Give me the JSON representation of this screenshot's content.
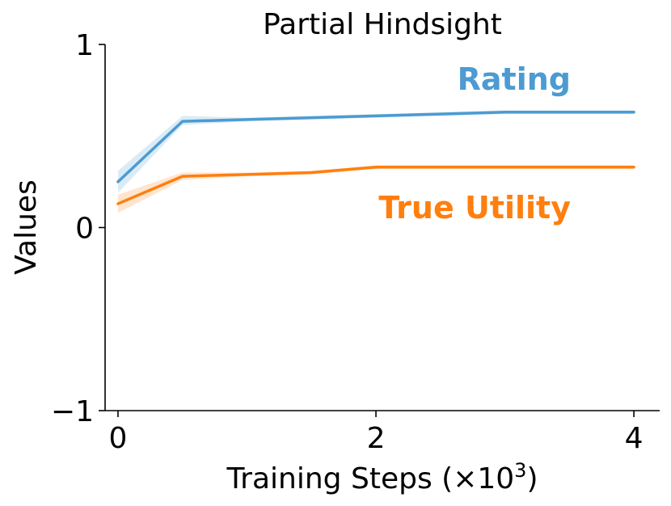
{
  "chart_data": {
    "type": "line",
    "title": "Partial Hindsight",
    "xlabel": "Training Steps (×10",
    "xlabel_superscript": "3",
    "xlabel_suffix": ")",
    "ylabel": "Values",
    "xlim": [
      -0.1,
      4.2
    ],
    "ylim": [
      -1,
      1
    ],
    "xticks": [
      0,
      2,
      4
    ],
    "xtick_labels": [
      "0",
      "2",
      "4"
    ],
    "yticks": [
      -1,
      0,
      1
    ],
    "ytick_labels": [
      "−1",
      "0",
      "1"
    ],
    "grid": false,
    "x": [
      0,
      0.5,
      1.0,
      1.5,
      2.0,
      2.5,
      3.0,
      3.5,
      4.0
    ],
    "series": [
      {
        "name": "Rating",
        "color": "#4c9bd2",
        "values": [
          0.25,
          0.58,
          0.59,
          0.6,
          0.61,
          0.62,
          0.63,
          0.63,
          0.63
        ],
        "lower": [
          0.19,
          0.56,
          0.58,
          0.59,
          0.6,
          0.61,
          0.62,
          0.62,
          0.62
        ],
        "upper": [
          0.31,
          0.61,
          0.6,
          0.61,
          0.62,
          0.63,
          0.64,
          0.64,
          0.64
        ]
      },
      {
        "name": "True Utility",
        "color": "#ff7f0e",
        "values": [
          0.13,
          0.28,
          0.29,
          0.3,
          0.33,
          0.33,
          0.33,
          0.33,
          0.33
        ],
        "lower": [
          0.08,
          0.26,
          0.28,
          0.29,
          0.32,
          0.32,
          0.32,
          0.32,
          0.32
        ],
        "upper": [
          0.18,
          0.3,
          0.3,
          0.31,
          0.34,
          0.34,
          0.34,
          0.34,
          0.34
        ]
      }
    ]
  }
}
